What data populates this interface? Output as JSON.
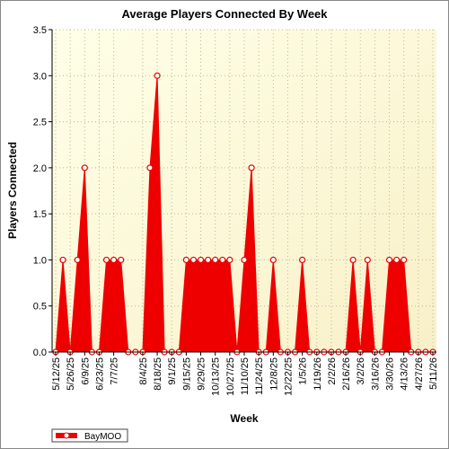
{
  "chart_data": {
    "type": "area",
    "title": "Average Players Connected By Week",
    "x_label": "Week",
    "y_label": "Players Connected",
    "categories": [
      "5/12/25",
      null,
      "5/26/25",
      null,
      "6/9/25",
      null,
      "6/23/25",
      null,
      "7/7/25",
      null,
      null,
      null,
      "8/4/25",
      null,
      "8/18/25",
      null,
      "9/1/25",
      null,
      "9/15/25",
      null,
      "9/29/25",
      null,
      "10/13/25",
      null,
      "10/27/25",
      null,
      "11/10/25",
      null,
      "11/24/25",
      null,
      "12/8/25",
      null,
      "12/22/25",
      null,
      "1/5/26",
      null,
      "1/19/26",
      null,
      "2/2/26",
      null,
      "2/16/26",
      null,
      "3/2/26",
      null,
      "3/16/26",
      null,
      "3/30/26",
      null,
      "4/13/26",
      null,
      "4/27/26",
      null,
      "5/11/26"
    ],
    "series": [
      {
        "name": "BayMOO",
        "color": "#ee0000",
        "values": [
          0,
          1,
          0,
          1,
          2,
          0,
          0,
          1,
          1,
          1,
          0,
          0,
          0,
          2,
          3,
          0,
          0,
          0,
          1,
          1,
          1,
          1,
          1,
          1,
          1,
          0,
          1,
          2,
          0,
          0,
          1,
          0,
          0,
          0,
          1,
          0,
          0,
          0,
          0,
          0,
          0,
          1,
          0,
          1,
          0,
          0,
          1,
          1,
          1,
          0,
          0,
          0,
          0
        ]
      }
    ],
    "ylim": [
      0,
      3.5
    ],
    "yticks": [
      {
        "value": 0,
        "label": "0.0"
      },
      0.5,
      {
        "value": 1,
        "label": "1.0"
      },
      1.5,
      {
        "value": 2,
        "label": "2.0"
      },
      2.5,
      {
        "value": 3,
        "label": "3.0"
      },
      3.5
    ],
    "grid": true,
    "legend": "bottom-left"
  }
}
